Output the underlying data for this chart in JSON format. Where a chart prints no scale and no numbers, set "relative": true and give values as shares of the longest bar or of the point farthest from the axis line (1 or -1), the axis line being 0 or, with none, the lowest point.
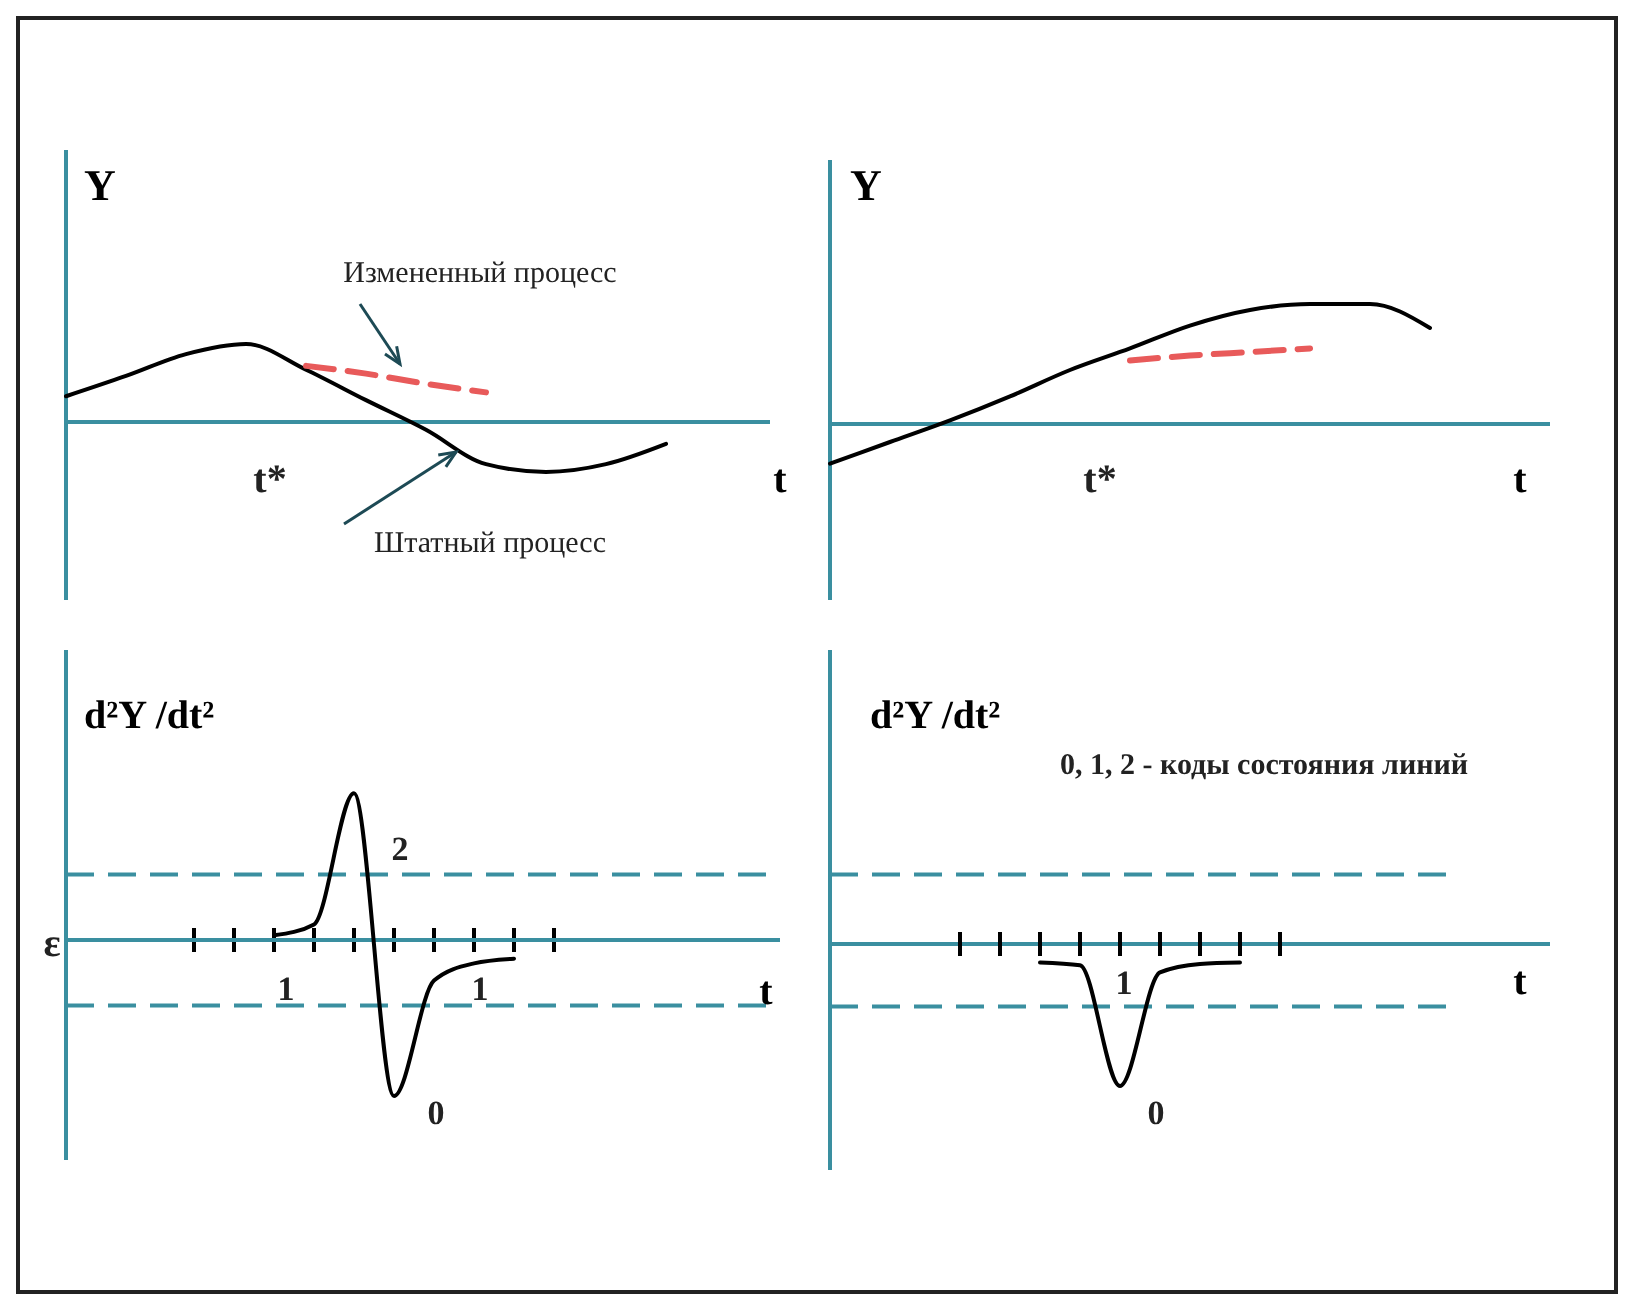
{
  "chart_data": [
    {
      "type": "line",
      "relative": true,
      "xlabel": "t",
      "ylabel": "Y",
      "categories": [
        null,
        null,
        null,
        null,
        null,
        null,
        null,
        null,
        null,
        null,
        null
      ],
      "series": [
        {
          "color": "#000000",
          "values": [
            0.33,
            0.59,
            0.87,
            1,
            0.67,
            0.28,
            -0.1,
            -0.54,
            -0.64,
            -0.54,
            -0.28
          ]
        },
        {
          "color": "#e85a5a",
          "line_style": "dashed",
          "values": [
            null,
            null,
            null,
            null,
            0.72,
            0.62,
            0.49,
            0.38,
            null,
            null,
            null
          ]
        }
      ],
      "ref_lines": [
        {
          "axis": "y",
          "value": 0,
          "color": "#3a8fa0",
          "line_style": "solid"
        }
      ],
      "annotations": [
        "t*",
        "Измененный процесс",
        "Штатный процесс"
      ]
    },
    {
      "type": "line",
      "relative": true,
      "xlabel": "t",
      "ylabel": "Y",
      "categories": [
        null,
        null,
        null,
        null,
        null,
        null,
        null,
        null,
        null,
        null,
        null
      ],
      "series": [
        {
          "color": "#000000",
          "values": [
            -0.33,
            -0.15,
            0.03,
            0.23,
            0.45,
            0.63,
            0.82,
            0.95,
            1,
            1,
            0.8
          ]
        },
        {
          "color": "#e85a5a",
          "line_style": "dashed",
          "values": [
            null,
            null,
            null,
            null,
            null,
            0.53,
            0.57,
            0.6,
            0.63,
            null,
            null
          ]
        }
      ],
      "ref_lines": [
        {
          "axis": "y",
          "value": 0,
          "color": "#3a8fa0",
          "line_style": "solid"
        }
      ],
      "annotations": [
        "t*"
      ]
    },
    {
      "type": "line",
      "relative": true,
      "xlabel": "t",
      "ylabel": "d²Y /dt²",
      "categories": [
        null,
        null,
        null,
        null,
        null,
        null,
        null,
        null,
        null,
        null
      ],
      "series": [
        {
          "color": "#000000",
          "values": [
            null,
            null,
            0.03,
            0.1,
            0.94,
            -1,
            -0.26,
            -0.15,
            -0.12,
            null
          ]
        }
      ],
      "ref_lines": [
        {
          "axis": "y",
          "value": 0,
          "color": "#3a8fa0",
          "line_style": "solid"
        },
        {
          "axis": "y",
          "value": 0.42,
          "color": "#3a8fa0",
          "line_style": "dashed"
        },
        {
          "axis": "y",
          "value": -0.42,
          "color": "#3a8fa0",
          "line_style": "dashed"
        }
      ],
      "annotations": [
        "ε",
        "1",
        "2",
        "0",
        "1"
      ]
    },
    {
      "type": "line",
      "relative": true,
      "xlabel": "t",
      "ylabel": "d²Y /dt²",
      "categories": [
        null,
        null,
        null,
        null,
        null,
        null,
        null,
        null,
        null
      ],
      "series": [
        {
          "color": "#000000",
          "values": [
            null,
            null,
            -0.13,
            -0.15,
            -1,
            -0.2,
            -0.14,
            -0.13,
            null
          ]
        }
      ],
      "ref_lines": [
        {
          "axis": "y",
          "value": 0.49,
          "color": "#3a8fa0",
          "line_style": "dashed"
        },
        {
          "axis": "y",
          "value": -0.44,
          "color": "#3a8fa0",
          "line_style": "dashed"
        }
      ],
      "annotations": [
        "0, 1, 2 - коды состояния линий",
        "1",
        "0"
      ]
    }
  ]
}
